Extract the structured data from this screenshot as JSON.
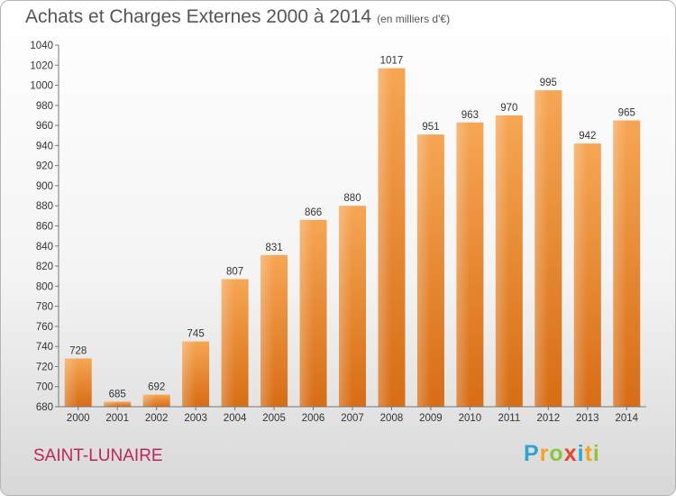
{
  "title": "Achats et Charges Externes 2000 à 2014",
  "unit": "(en milliers d'€)",
  "city": "SAINT-LUNAIRE",
  "logo": {
    "letters": [
      {
        "ch": "P",
        "color": "#2aa6d6"
      },
      {
        "ch": "r",
        "color": "#f7a21b"
      },
      {
        "ch": "o",
        "color": "#8cc63f"
      },
      {
        "ch": "x",
        "color": "#e8432b"
      },
      {
        "ch": "i",
        "color": "#2aa6d6"
      },
      {
        "ch": "t",
        "color": "#f7a21b"
      },
      {
        "ch": "i",
        "color": "#8cc63f"
      }
    ]
  },
  "chart_data": {
    "type": "bar",
    "categories": [
      "2000",
      "2001",
      "2002",
      "2003",
      "2004",
      "2005",
      "2006",
      "2007",
      "2008",
      "2009",
      "2010",
      "2011",
      "2012",
      "2013",
      "2014"
    ],
    "values": [
      728,
      685,
      692,
      745,
      807,
      831,
      866,
      880,
      1017,
      951,
      963,
      970,
      995,
      942,
      965
    ],
    "ylim": [
      680,
      1040
    ],
    "yticks": [
      680,
      700,
      720,
      740,
      760,
      780,
      800,
      820,
      840,
      860,
      880,
      900,
      920,
      940,
      960,
      980,
      1000,
      1020,
      1040
    ],
    "grid": false,
    "bar_color": "#ed8a2e"
  }
}
